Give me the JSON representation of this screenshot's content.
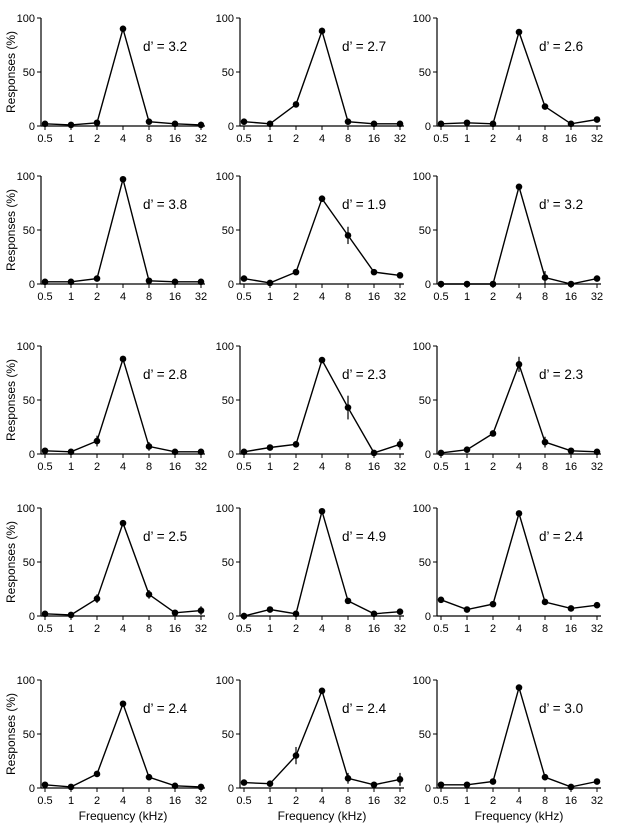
{
  "chart_data": [
    {
      "type": "line",
      "panel": "r1c1",
      "x": [
        "0.5",
        "1",
        "2",
        "4",
        "8",
        "16",
        "32"
      ],
      "series": [
        {
          "values": [
            2,
            1,
            3,
            90,
            4,
            2,
            1
          ],
          "errors": [
            0,
            0,
            0,
            3,
            0,
            0,
            3
          ]
        }
      ],
      "annotation": "d’ = 3.2",
      "ylabel": "Responses (%)",
      "xlabel": "",
      "ylim": [
        0,
        100
      ],
      "yticks": [
        "0",
        "50",
        "100"
      ]
    },
    {
      "type": "line",
      "panel": "r1c2",
      "x": [
        "0.5",
        "1",
        "2",
        "4",
        "8",
        "16",
        "32"
      ],
      "series": [
        {
          "values": [
            4,
            2,
            20,
            88,
            4,
            2,
            2
          ],
          "errors": [
            0,
            0,
            0,
            3,
            0,
            0,
            0
          ]
        }
      ],
      "annotation": "d’ = 2.7",
      "ylabel": "",
      "xlabel": "",
      "ylim": [
        0,
        100
      ],
      "yticks": [
        "0",
        "50",
        "100"
      ]
    },
    {
      "type": "line",
      "panel": "r1c3",
      "x": [
        "0.5",
        "1",
        "2",
        "4",
        "8",
        "16",
        "32"
      ],
      "series": [
        {
          "values": [
            2,
            3,
            2,
            87,
            18,
            2,
            6
          ],
          "errors": [
            0,
            0,
            0,
            0,
            0,
            0,
            0
          ]
        }
      ],
      "annotation": "d’ = 2.6",
      "ylabel": "",
      "xlabel": "",
      "ylim": [
        0,
        100
      ],
      "yticks": [
        "0",
        "50",
        "100"
      ]
    },
    {
      "type": "line",
      "panel": "r2c1",
      "x": [
        "0.5",
        "1",
        "2",
        "4",
        "8",
        "16",
        "32"
      ],
      "series": [
        {
          "values": [
            2,
            2,
            5,
            97,
            3,
            2,
            2
          ],
          "errors": [
            0,
            0,
            0,
            0,
            0,
            0,
            0
          ]
        }
      ],
      "annotation": "d’ = 3.8",
      "ylabel": "Responses (%)",
      "xlabel": "",
      "ylim": [
        0,
        100
      ],
      "yticks": [
        "0",
        "50",
        "100"
      ]
    },
    {
      "type": "line",
      "panel": "r2c2",
      "x": [
        "0.5",
        "1",
        "2",
        "4",
        "8",
        "16",
        "32"
      ],
      "series": [
        {
          "values": [
            5,
            1,
            11,
            79,
            45,
            11,
            8
          ],
          "errors": [
            0,
            0,
            0,
            3,
            8,
            0,
            0
          ]
        }
      ],
      "annotation": "d’ = 1.9",
      "ylabel": "",
      "xlabel": "",
      "ylim": [
        0,
        100
      ],
      "yticks": [
        "0",
        "50",
        "100"
      ]
    },
    {
      "type": "line",
      "panel": "r2c3",
      "x": [
        "0.5",
        "1",
        "2",
        "4",
        "8",
        "16",
        "32"
      ],
      "series": [
        {
          "values": [
            0,
            0,
            0,
            90,
            6,
            0,
            5
          ],
          "errors": [
            0,
            0,
            0,
            0,
            6,
            0,
            0
          ]
        }
      ],
      "annotation": "d’ = 3.2",
      "ylabel": "",
      "xlabel": "",
      "ylim": [
        0,
        100
      ],
      "yticks": [
        "0",
        "50",
        "100"
      ]
    },
    {
      "type": "line",
      "panel": "r3c1",
      "x": [
        "0.5",
        "1",
        "2",
        "4",
        "8",
        "16",
        "32"
      ],
      "series": [
        {
          "values": [
            3,
            2,
            12,
            88,
            7,
            2,
            2
          ],
          "errors": [
            0,
            0,
            5,
            0,
            4,
            0,
            0
          ]
        }
      ],
      "annotation": "d’ = 2.8",
      "ylabel": "Responses (%)",
      "xlabel": "",
      "ylim": [
        0,
        100
      ],
      "yticks": [
        "0",
        "50",
        "100"
      ]
    },
    {
      "type": "line",
      "panel": "r3c2",
      "x": [
        "0.5",
        "1",
        "2",
        "4",
        "8",
        "16",
        "32"
      ],
      "series": [
        {
          "values": [
            2,
            6,
            9,
            87,
            43,
            1,
            9
          ],
          "errors": [
            2,
            0,
            0,
            0,
            11,
            0,
            5
          ]
        }
      ],
      "annotation": "d’ = 2.3",
      "ylabel": "",
      "xlabel": "",
      "ylim": [
        0,
        100
      ],
      "yticks": [
        "0",
        "50",
        "100"
      ]
    },
    {
      "type": "line",
      "panel": "r3c3",
      "x": [
        "0.5",
        "1",
        "2",
        "4",
        "8",
        "16",
        "32"
      ],
      "series": [
        {
          "values": [
            1,
            4,
            19,
            83,
            11,
            3,
            2
          ],
          "errors": [
            0,
            0,
            0,
            7,
            5,
            0,
            0
          ]
        }
      ],
      "annotation": "d’ = 2.3",
      "ylabel": "",
      "xlabel": "",
      "ylim": [
        0,
        100
      ],
      "yticks": [
        "0",
        "50",
        "100"
      ]
    },
    {
      "type": "line",
      "panel": "r4c1",
      "x": [
        "0.5",
        "1",
        "2",
        "4",
        "8",
        "16",
        "32"
      ],
      "series": [
        {
          "values": [
            2,
            1,
            16,
            86,
            20,
            3,
            5
          ],
          "errors": [
            0,
            0,
            4,
            0,
            4,
            0,
            4
          ]
        }
      ],
      "annotation": "d’ = 2.5",
      "ylabel": "Responses (%)",
      "xlabel": "",
      "ylim": [
        0,
        100
      ],
      "yticks": [
        "0",
        "50",
        "100"
      ]
    },
    {
      "type": "line",
      "panel": "r4c2",
      "x": [
        "0.5",
        "1",
        "2",
        "4",
        "8",
        "16",
        "32"
      ],
      "series": [
        {
          "values": [
            0,
            6,
            2,
            97,
            14,
            2,
            4
          ],
          "errors": [
            3,
            0,
            0,
            0,
            0,
            0,
            0
          ]
        }
      ],
      "annotation": "d’ = 4.9",
      "ylabel": "",
      "xlabel": "",
      "ylim": [
        0,
        100
      ],
      "yticks": [
        "0",
        "50",
        "100"
      ]
    },
    {
      "type": "line",
      "panel": "r4c3",
      "x": [
        "0.5",
        "1",
        "2",
        "4",
        "8",
        "16",
        "32"
      ],
      "series": [
        {
          "values": [
            15,
            6,
            11,
            95,
            13,
            7,
            10
          ],
          "errors": [
            0,
            0,
            0,
            0,
            0,
            0,
            0
          ]
        }
      ],
      "annotation": "d’ = 2.4",
      "ylabel": "",
      "xlabel": "",
      "ylim": [
        0,
        100
      ],
      "yticks": [
        "0",
        "50",
        "100"
      ]
    },
    {
      "type": "line",
      "panel": "r5c1",
      "x": [
        "0.5",
        "1",
        "2",
        "4",
        "8",
        "16",
        "32"
      ],
      "series": [
        {
          "values": [
            3,
            1,
            13,
            78,
            10,
            2,
            1
          ],
          "errors": [
            0,
            0,
            0,
            0,
            0,
            0,
            0
          ]
        }
      ],
      "annotation": "d’ = 2.4",
      "ylabel": "Responses (%)",
      "xlabel": "Frequency (kHz)",
      "ylim": [
        0,
        100
      ],
      "yticks": [
        "0",
        "50",
        "100"
      ]
    },
    {
      "type": "line",
      "panel": "r5c2",
      "x": [
        "0.5",
        "1",
        "2",
        "4",
        "8",
        "16",
        "32"
      ],
      "series": [
        {
          "values": [
            5,
            4,
            30,
            90,
            9,
            3,
            8
          ],
          "errors": [
            0,
            0,
            8,
            0,
            5,
            0,
            6
          ]
        }
      ],
      "annotation": "d’ = 2.4",
      "ylabel": "",
      "xlabel": "Frequency (kHz)",
      "ylim": [
        0,
        100
      ],
      "yticks": [
        "0",
        "50",
        "100"
      ]
    },
    {
      "type": "line",
      "panel": "r5c3",
      "x": [
        "0.5",
        "1",
        "2",
        "4",
        "8",
        "16",
        "32"
      ],
      "series": [
        {
          "values": [
            3,
            3,
            6,
            93,
            10,
            1,
            6
          ],
          "errors": [
            0,
            0,
            0,
            0,
            0,
            0,
            0
          ]
        }
      ],
      "annotation": "d’ = 3.0",
      "ylabel": "",
      "xlabel": "Frequency (kHz)",
      "ylim": [
        0,
        100
      ],
      "yticks": [
        "0",
        "50",
        "100"
      ]
    }
  ],
  "style": {
    "line_color": "#000000",
    "marker_color": "#000000"
  }
}
